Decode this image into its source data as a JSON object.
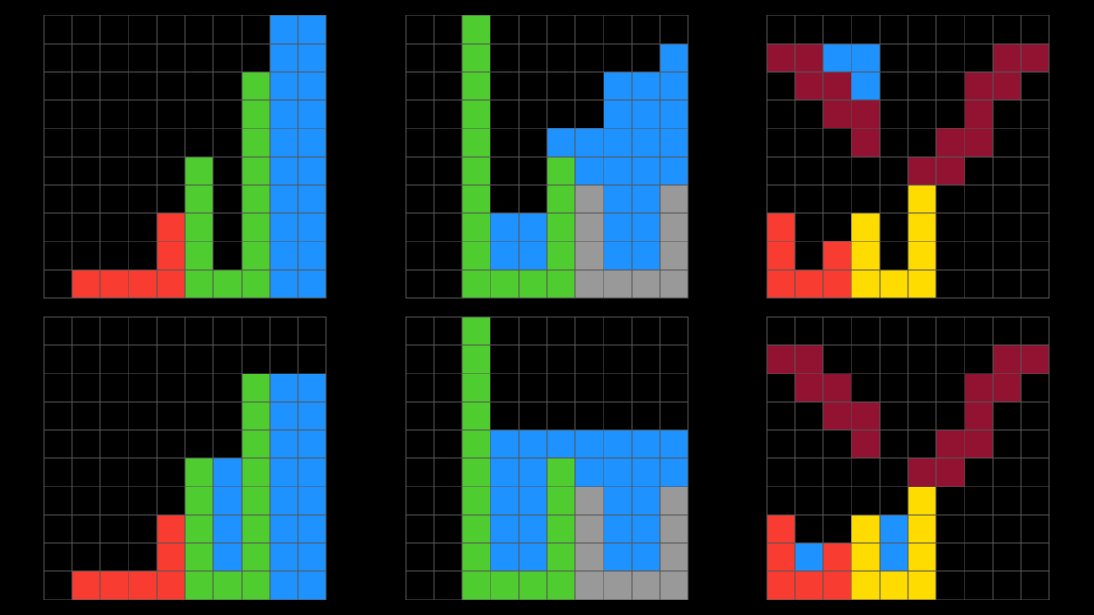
{
  "palette": [
    "#000000",
    "#1E93FF",
    "#F93C31",
    "#4FCC30",
    "#FFDC00",
    "#999999",
    "#E53AA3",
    "#FF851B",
    "#87D8F1",
    "#921231"
  ],
  "grid_line_color": "#555555",
  "grids": [
    {
      "cells": [
        [
          0,
          0,
          0,
          0,
          0,
          0,
          0,
          0,
          1,
          1
        ],
        [
          0,
          0,
          0,
          0,
          0,
          0,
          0,
          0,
          1,
          1
        ],
        [
          0,
          0,
          0,
          0,
          0,
          0,
          0,
          3,
          1,
          1
        ],
        [
          0,
          0,
          0,
          0,
          0,
          0,
          0,
          3,
          1,
          1
        ],
        [
          0,
          0,
          0,
          0,
          0,
          0,
          0,
          3,
          1,
          1
        ],
        [
          0,
          0,
          0,
          0,
          0,
          3,
          0,
          3,
          1,
          1
        ],
        [
          0,
          0,
          0,
          0,
          0,
          3,
          0,
          3,
          1,
          1
        ],
        [
          0,
          0,
          0,
          0,
          2,
          3,
          0,
          3,
          1,
          1
        ],
        [
          0,
          0,
          0,
          0,
          2,
          3,
          0,
          3,
          1,
          1
        ],
        [
          0,
          2,
          2,
          2,
          2,
          3,
          3,
          3,
          1,
          1
        ]
      ]
    },
    {
      "cells": [
        [
          0,
          0,
          3,
          0,
          0,
          0,
          0,
          0,
          0,
          0
        ],
        [
          0,
          0,
          3,
          0,
          0,
          0,
          0,
          0,
          0,
          1
        ],
        [
          0,
          0,
          3,
          0,
          0,
          0,
          0,
          1,
          1,
          1
        ],
        [
          0,
          0,
          3,
          0,
          0,
          0,
          0,
          1,
          1,
          1
        ],
        [
          0,
          0,
          3,
          0,
          0,
          1,
          1,
          1,
          1,
          1
        ],
        [
          0,
          0,
          3,
          0,
          0,
          3,
          1,
          1,
          1,
          1
        ],
        [
          0,
          0,
          3,
          0,
          0,
          3,
          5,
          1,
          1,
          5
        ],
        [
          0,
          0,
          3,
          1,
          1,
          3,
          5,
          1,
          1,
          5
        ],
        [
          0,
          0,
          3,
          1,
          1,
          3,
          5,
          1,
          1,
          5
        ],
        [
          0,
          0,
          3,
          3,
          3,
          3,
          5,
          5,
          5,
          5
        ]
      ]
    },
    {
      "cells": [
        [
          0,
          0,
          0,
          0,
          0,
          0,
          0,
          0,
          0,
          0
        ],
        [
          9,
          9,
          1,
          1,
          0,
          0,
          0,
          0,
          9,
          9
        ],
        [
          0,
          9,
          9,
          1,
          0,
          0,
          0,
          9,
          9,
          0
        ],
        [
          0,
          0,
          9,
          9,
          0,
          0,
          0,
          9,
          0,
          0
        ],
        [
          0,
          0,
          0,
          9,
          0,
          0,
          9,
          9,
          0,
          0
        ],
        [
          0,
          0,
          0,
          0,
          0,
          9,
          9,
          0,
          0,
          0
        ],
        [
          0,
          0,
          0,
          0,
          0,
          4,
          0,
          0,
          0,
          0
        ],
        [
          2,
          0,
          0,
          4,
          0,
          4,
          0,
          0,
          0,
          0
        ],
        [
          2,
          0,
          2,
          4,
          0,
          4,
          0,
          0,
          0,
          0
        ],
        [
          2,
          2,
          2,
          4,
          4,
          4,
          0,
          0,
          0,
          0
        ]
      ]
    },
    {
      "cells": [
        [
          0,
          0,
          0,
          0,
          0,
          0,
          0,
          0,
          0,
          0
        ],
        [
          0,
          0,
          0,
          0,
          0,
          0,
          0,
          0,
          0,
          0
        ],
        [
          0,
          0,
          0,
          0,
          0,
          0,
          0,
          3,
          1,
          1
        ],
        [
          0,
          0,
          0,
          0,
          0,
          0,
          0,
          3,
          1,
          1
        ],
        [
          0,
          0,
          0,
          0,
          0,
          0,
          0,
          3,
          1,
          1
        ],
        [
          0,
          0,
          0,
          0,
          0,
          3,
          1,
          3,
          1,
          1
        ],
        [
          0,
          0,
          0,
          0,
          0,
          3,
          1,
          3,
          1,
          1
        ],
        [
          0,
          0,
          0,
          0,
          2,
          3,
          1,
          3,
          1,
          1
        ],
        [
          0,
          0,
          0,
          0,
          2,
          3,
          1,
          3,
          1,
          1
        ],
        [
          0,
          2,
          2,
          2,
          2,
          3,
          3,
          3,
          1,
          1
        ]
      ]
    },
    {
      "cells": [
        [
          0,
          0,
          3,
          0,
          0,
          0,
          0,
          0,
          0,
          0
        ],
        [
          0,
          0,
          3,
          0,
          0,
          0,
          0,
          0,
          0,
          0
        ],
        [
          0,
          0,
          3,
          0,
          0,
          0,
          0,
          0,
          0,
          0
        ],
        [
          0,
          0,
          3,
          0,
          0,
          0,
          0,
          0,
          0,
          0
        ],
        [
          0,
          0,
          3,
          1,
          1,
          1,
          1,
          1,
          1,
          1
        ],
        [
          0,
          0,
          3,
          1,
          1,
          3,
          1,
          1,
          1,
          1
        ],
        [
          0,
          0,
          3,
          1,
          1,
          3,
          5,
          1,
          1,
          5
        ],
        [
          0,
          0,
          3,
          1,
          1,
          3,
          5,
          1,
          1,
          5
        ],
        [
          0,
          0,
          3,
          1,
          1,
          3,
          5,
          1,
          1,
          5
        ],
        [
          0,
          0,
          3,
          3,
          3,
          3,
          5,
          5,
          5,
          5
        ]
      ]
    },
    {
      "cells": [
        [
          0,
          0,
          0,
          0,
          0,
          0,
          0,
          0,
          0,
          0
        ],
        [
          9,
          9,
          0,
          0,
          0,
          0,
          0,
          0,
          9,
          9
        ],
        [
          0,
          9,
          9,
          0,
          0,
          0,
          0,
          9,
          9,
          0
        ],
        [
          0,
          0,
          9,
          9,
          0,
          0,
          0,
          9,
          0,
          0
        ],
        [
          0,
          0,
          0,
          9,
          0,
          0,
          9,
          9,
          0,
          0
        ],
        [
          0,
          0,
          0,
          0,
          0,
          9,
          9,
          0,
          0,
          0
        ],
        [
          0,
          0,
          0,
          0,
          0,
          4,
          0,
          0,
          0,
          0
        ],
        [
          2,
          0,
          0,
          4,
          1,
          4,
          0,
          0,
          0,
          0
        ],
        [
          2,
          1,
          2,
          4,
          1,
          4,
          0,
          0,
          0,
          0
        ],
        [
          2,
          2,
          2,
          4,
          4,
          4,
          0,
          0,
          0,
          0
        ]
      ]
    }
  ]
}
